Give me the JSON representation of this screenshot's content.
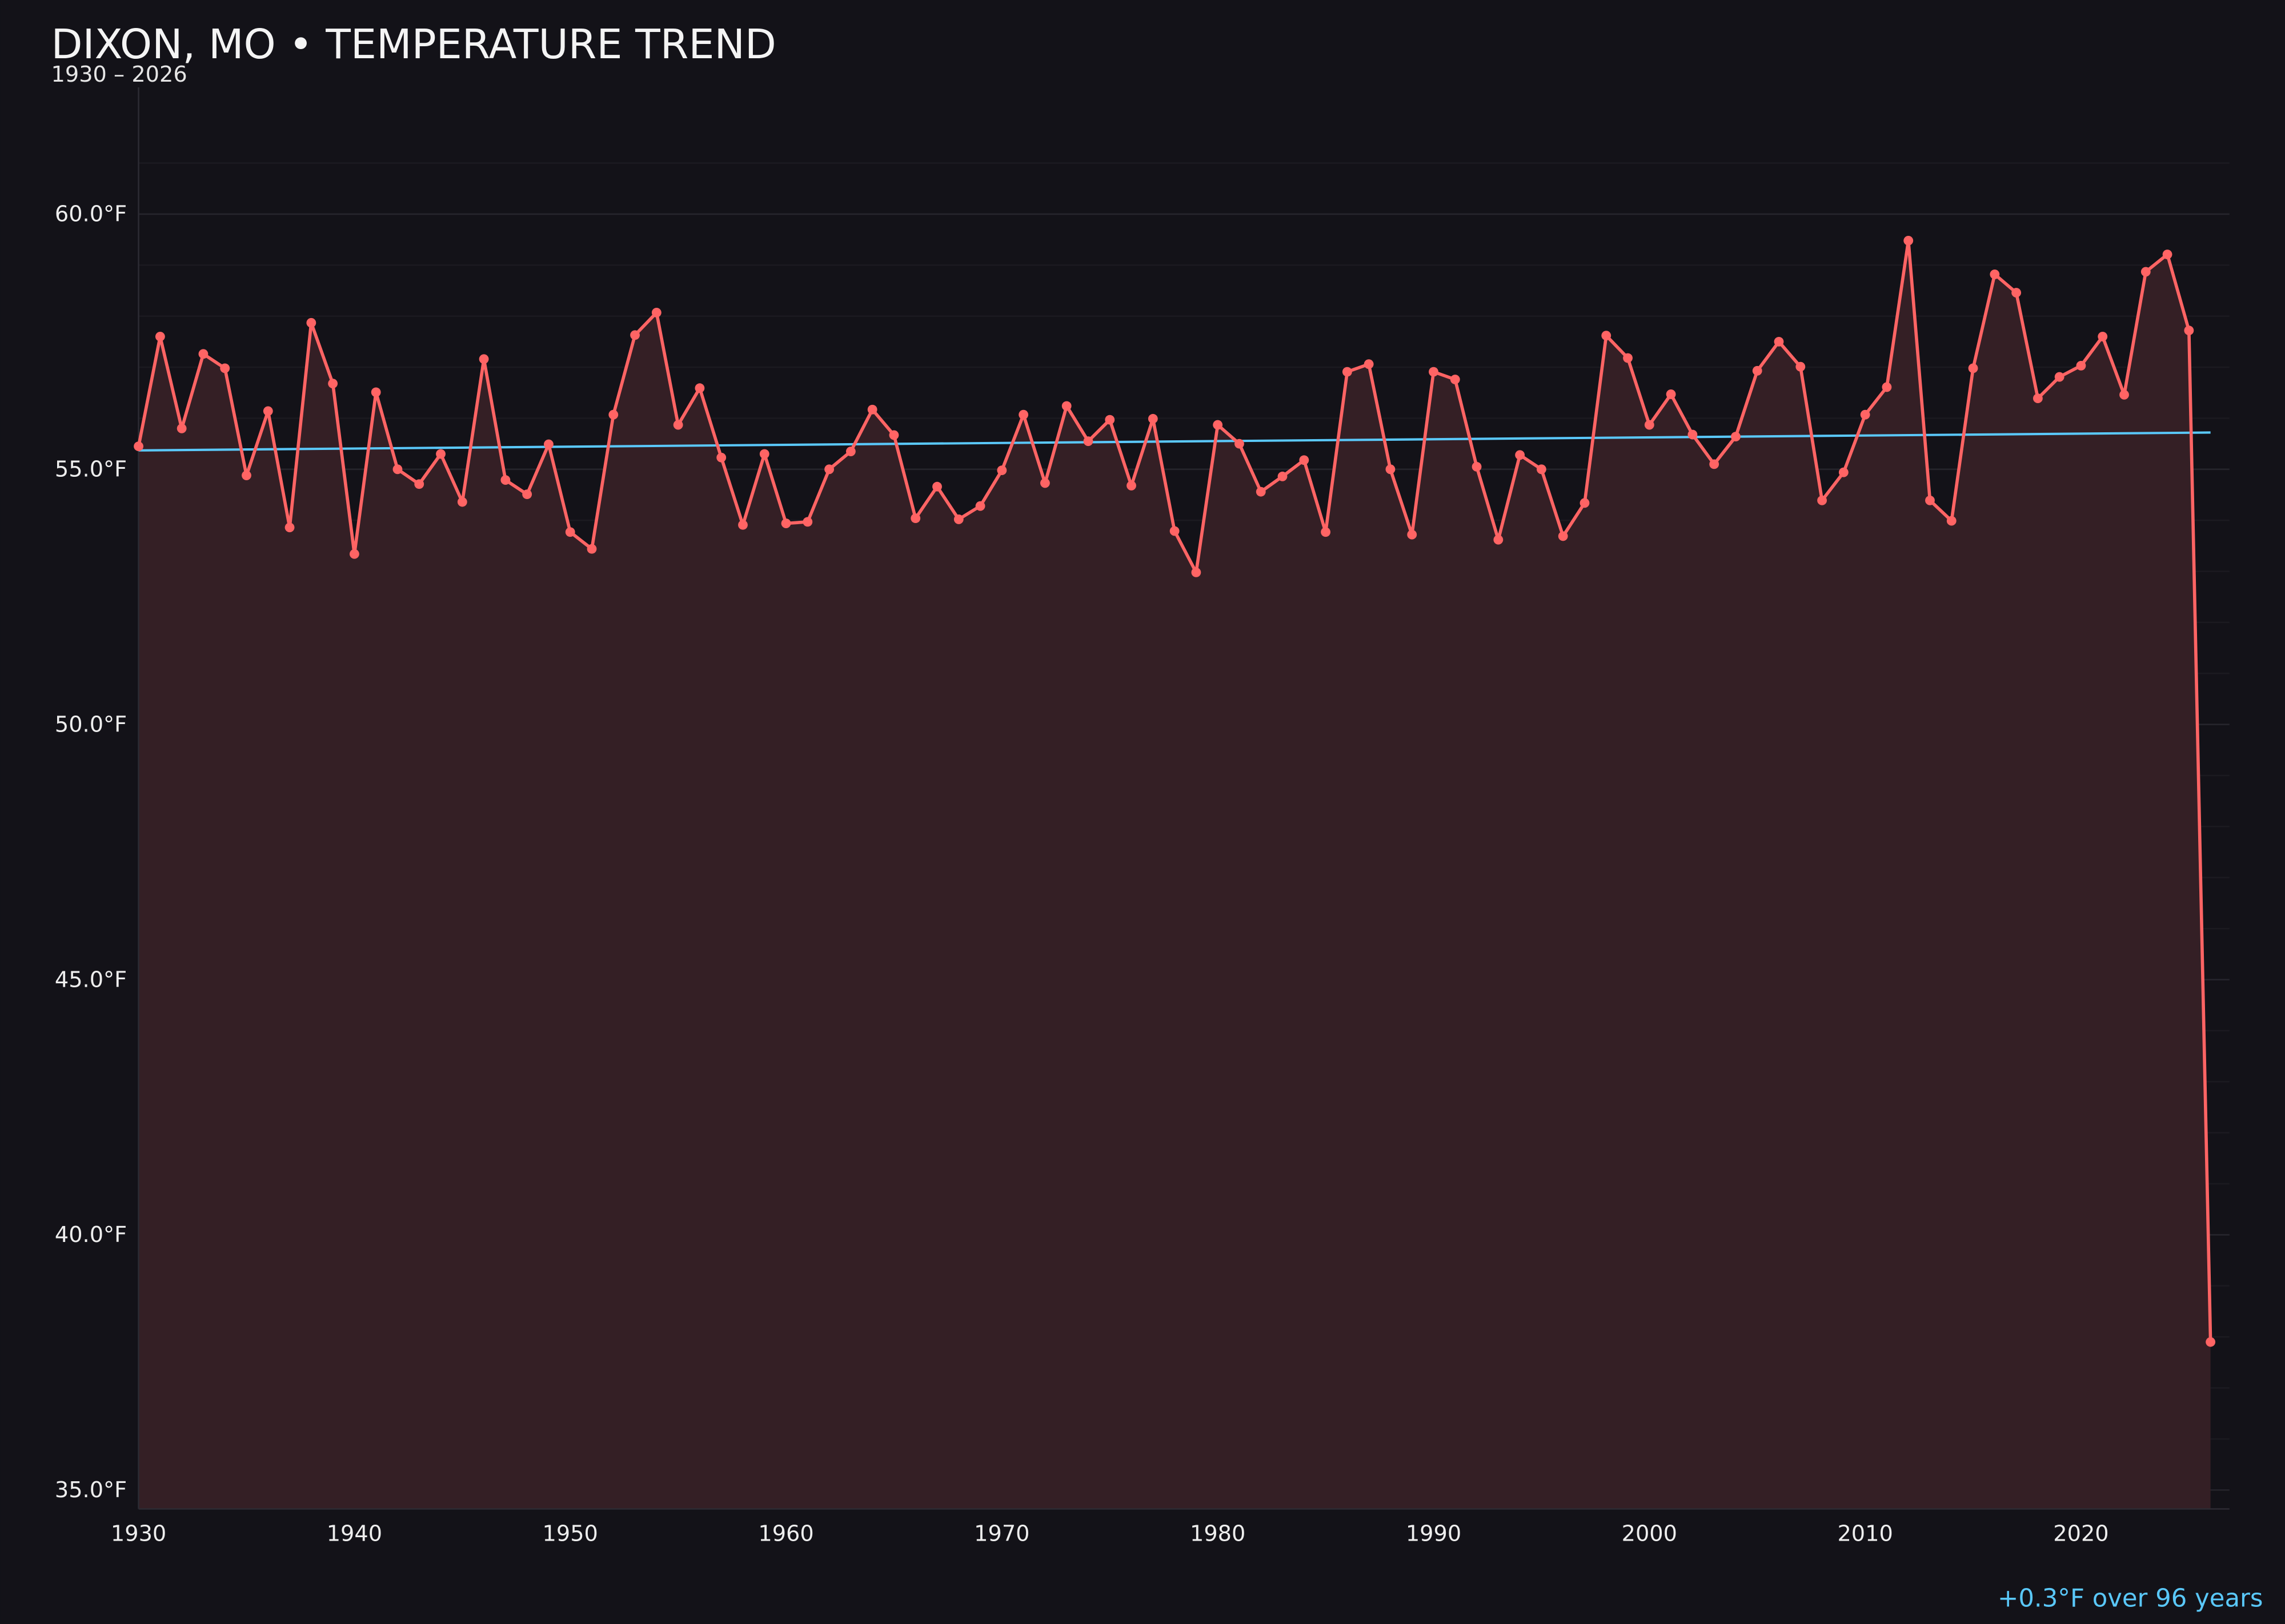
{
  "colors": {
    "background": "#131218",
    "line": "#ff6464",
    "fill": "#341f25",
    "trend": "#5ac8fa",
    "text": "#f0f0f0",
    "grid": "#26252c"
  },
  "chart_data": {
    "type": "line",
    "title": "DIXON, MO • TEMPERATURE TREND",
    "subtitle": "1930 – 2026",
    "xlabel": "",
    "ylabel": "",
    "xlim": [
      1930,
      2026
    ],
    "ylim": [
      34.7,
      62
    ],
    "grid": true,
    "x_ticks": [
      "1930",
      "1940",
      "1950",
      "1960",
      "1970",
      "1980",
      "1990",
      "2000",
      "2010",
      "2020"
    ],
    "y_ticks": [
      "35.0°F",
      "40.0°F",
      "45.0°F",
      "50.0°F",
      "55.0°F",
      "60.0°F"
    ],
    "x": [
      1930,
      1931,
      1932,
      1933,
      1934,
      1935,
      1936,
      1937,
      1938,
      1939,
      1940,
      1941,
      1942,
      1943,
      1944,
      1945,
      1946,
      1947,
      1948,
      1949,
      1950,
      1951,
      1952,
      1953,
      1954,
      1955,
      1956,
      1957,
      1958,
      1959,
      1960,
      1961,
      1962,
      1963,
      1964,
      1965,
      1966,
      1967,
      1968,
      1969,
      1970,
      1971,
      1972,
      1973,
      1974,
      1975,
      1976,
      1977,
      1978,
      1979,
      1980,
      1981,
      1982,
      1983,
      1984,
      1985,
      1986,
      1987,
      1988,
      1989,
      1990,
      1991,
      1992,
      1993,
      1994,
      1995,
      1996,
      1997,
      1998,
      1999,
      2000,
      2001,
      2002,
      2003,
      2004,
      2005,
      2006,
      2007,
      2008,
      2009,
      2010,
      2011,
      2012,
      2013,
      2014,
      2015,
      2016,
      2017,
      2018,
      2019,
      2020,
      2021,
      2022,
      2023,
      2024,
      2025,
      2026
    ],
    "series": [
      {
        "values": [
          55.45,
          57.6,
          55.8,
          57.26,
          56.98,
          54.88,
          56.14,
          53.86,
          57.87,
          56.68,
          53.34,
          56.51,
          55.0,
          54.71,
          55.3,
          54.36,
          57.16,
          54.79,
          54.51,
          55.49,
          53.77,
          53.44,
          56.07,
          57.63,
          58.07,
          55.87,
          56.59,
          55.23,
          53.91,
          55.3,
          53.94,
          53.97,
          55.0,
          55.35,
          56.17,
          55.67,
          54.04,
          54.66,
          54.02,
          54.28,
          54.98,
          56.07,
          54.73,
          56.24,
          55.55,
          55.97,
          54.68,
          55.99,
          53.79,
          52.98,
          55.87,
          55.5,
          54.56,
          54.86,
          55.18,
          53.77,
          56.91,
          57.06,
          55.0,
          53.72,
          56.91,
          56.76,
          55.05,
          53.62,
          55.28,
          55.0,
          53.69,
          54.34,
          57.62,
          57.18,
          55.87,
          56.47,
          55.68,
          55.1,
          55.64,
          56.93,
          57.5,
          57.01,
          54.39,
          54.94,
          56.07,
          56.61,
          59.48,
          54.39,
          53.99,
          56.98,
          58.82,
          58.46,
          56.39,
          56.81,
          57.03,
          57.6,
          56.46,
          58.87,
          59.21,
          57.72,
          37.9
        ]
      }
    ],
    "trend": {
      "x": [
        1930,
        2026
      ],
      "y": [
        55.37,
        55.72
      ]
    },
    "annotation": "+0.3°F over 96 years"
  }
}
